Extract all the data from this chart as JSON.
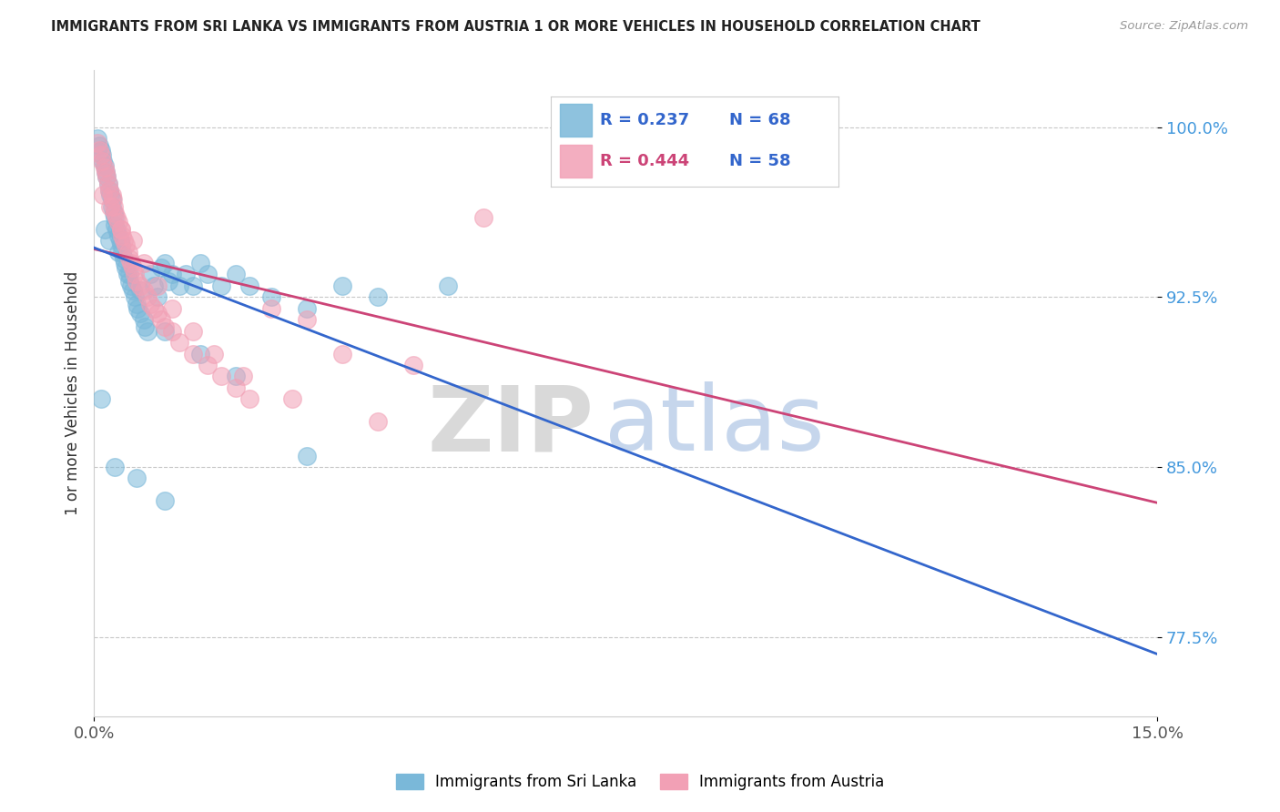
{
  "title": "IMMIGRANTS FROM SRI LANKA VS IMMIGRANTS FROM AUSTRIA 1 OR MORE VEHICLES IN HOUSEHOLD CORRELATION CHART",
  "source": "Source: ZipAtlas.com",
  "ylabel": "1 or more Vehicles in Household",
  "xlim_min": 0.0,
  "xlim_max": 15.0,
  "ylim_min": 74.0,
  "ylim_max": 102.5,
  "yticks": [
    77.5,
    85.0,
    92.5,
    100.0
  ],
  "ytick_labels": [
    "77.5%",
    "85.0%",
    "92.5%",
    "100.0%"
  ],
  "xtick_left_label": "0.0%",
  "xtick_right_label": "15.0%",
  "sri_lanka_color": "#7ab8d9",
  "austria_color": "#f2a0b5",
  "sri_lanka_line_color": "#3366cc",
  "austria_line_color": "#cc4477",
  "R_sri_lanka": 0.237,
  "N_sri_lanka": 68,
  "R_austria": 0.444,
  "N_austria": 58,
  "watermark_zip": "ZIP",
  "watermark_atlas": "atlas",
  "watermark_zip_color": "#d0d0d0",
  "watermark_atlas_color": "#b8cce8",
  "background_color": "#ffffff",
  "legend_sri_lanka": "Immigrants from Sri Lanka",
  "legend_austria": "Immigrants from Austria",
  "sri_lanka_x": [
    0.05,
    0.08,
    0.1,
    0.12,
    0.13,
    0.15,
    0.17,
    0.18,
    0.2,
    0.22,
    0.23,
    0.25,
    0.26,
    0.28,
    0.3,
    0.3,
    0.32,
    0.35,
    0.37,
    0.38,
    0.4,
    0.42,
    0.43,
    0.45,
    0.47,
    0.5,
    0.52,
    0.55,
    0.57,
    0.6,
    0.62,
    0.65,
    0.7,
    0.72,
    0.75,
    0.8,
    0.85,
    0.9,
    0.95,
    1.0,
    1.05,
    1.1,
    1.2,
    1.3,
    1.4,
    1.5,
    1.6,
    1.8,
    2.0,
    2.2,
    2.5,
    3.0,
    3.5,
    4.0,
    5.0,
    0.15,
    0.22,
    0.35,
    0.5,
    0.65,
    1.0,
    1.5,
    2.0,
    3.0,
    0.1,
    0.3,
    0.6,
    1.0
  ],
  "sri_lanka_y": [
    99.5,
    99.2,
    99.0,
    98.8,
    98.5,
    98.3,
    98.0,
    97.8,
    97.5,
    97.2,
    97.0,
    96.8,
    96.5,
    96.2,
    96.0,
    95.7,
    95.5,
    95.2,
    95.0,
    94.8,
    94.5,
    94.2,
    94.0,
    93.8,
    93.5,
    93.2,
    93.0,
    92.8,
    92.5,
    92.2,
    92.0,
    91.8,
    91.5,
    91.2,
    91.0,
    93.5,
    93.0,
    92.5,
    93.8,
    94.0,
    93.2,
    93.5,
    93.0,
    93.5,
    93.0,
    94.0,
    93.5,
    93.0,
    93.5,
    93.0,
    92.5,
    92.0,
    93.0,
    92.5,
    93.0,
    95.5,
    95.0,
    94.5,
    93.5,
    92.8,
    91.0,
    90.0,
    89.0,
    85.5,
    88.0,
    85.0,
    84.5,
    83.5
  ],
  "austria_x": [
    0.05,
    0.08,
    0.1,
    0.12,
    0.15,
    0.17,
    0.18,
    0.2,
    0.22,
    0.25,
    0.27,
    0.28,
    0.3,
    0.32,
    0.35,
    0.38,
    0.4,
    0.42,
    0.45,
    0.48,
    0.5,
    0.52,
    0.55,
    0.58,
    0.6,
    0.65,
    0.7,
    0.75,
    0.8,
    0.85,
    0.9,
    0.95,
    1.0,
    1.1,
    1.2,
    1.4,
    1.6,
    1.8,
    2.0,
    2.2,
    2.5,
    3.0,
    3.5,
    4.5,
    0.13,
    0.23,
    0.38,
    0.55,
    0.7,
    0.9,
    1.1,
    1.4,
    1.7,
    2.1,
    2.8,
    4.0,
    8.0,
    5.5
  ],
  "austria_y": [
    99.3,
    99.0,
    98.8,
    98.5,
    98.2,
    98.0,
    97.8,
    97.5,
    97.2,
    97.0,
    96.8,
    96.5,
    96.2,
    96.0,
    95.8,
    95.5,
    95.2,
    95.0,
    94.8,
    94.5,
    94.2,
    94.0,
    93.8,
    93.5,
    93.2,
    93.0,
    92.8,
    92.5,
    92.2,
    92.0,
    91.8,
    91.5,
    91.2,
    91.0,
    90.5,
    90.0,
    89.5,
    89.0,
    88.5,
    88.0,
    92.0,
    91.5,
    90.0,
    89.5,
    97.0,
    96.5,
    95.5,
    95.0,
    94.0,
    93.0,
    92.0,
    91.0,
    90.0,
    89.0,
    88.0,
    87.0,
    100.0,
    96.0
  ]
}
